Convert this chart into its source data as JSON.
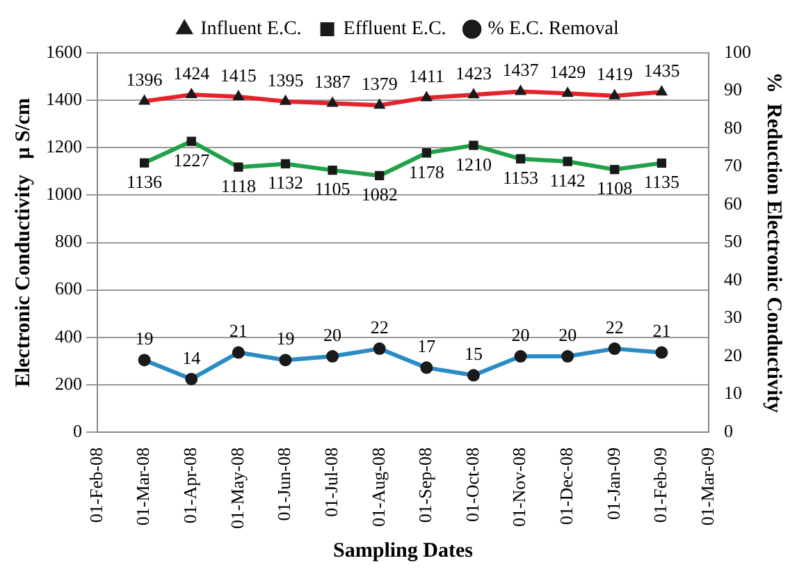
{
  "chart_data": {
    "type": "line",
    "categories": [
      "01-Feb-08",
      "01-Mar-08",
      "01-Apr-08",
      "01-May-08",
      "01-Jun-08",
      "01-Jul-08",
      "01-Aug-08",
      "01-Sep-08",
      "01-Oct-08",
      "01-Nov-08",
      "01-Dec-08",
      "01-Jan-09",
      "01-Feb-09",
      "01-Mar-09"
    ],
    "series": [
      {
        "name": "Influent E.C.",
        "color": "#e3222b",
        "marker": "triangle",
        "values": [
          null,
          1396,
          1424,
          1415,
          1395,
          1387,
          1379,
          1411,
          1423,
          1437,
          1429,
          1419,
          1435,
          null
        ]
      },
      {
        "name": "Effluent E.C.",
        "color": "#21a24a",
        "marker": "square",
        "values": [
          null,
          1136,
          1227,
          1118,
          1132,
          1105,
          1082,
          1178,
          1210,
          1153,
          1142,
          1108,
          1135,
          null
        ]
      },
      {
        "name": "% E.C. Removal",
        "color": "#2b8cc4",
        "marker": "circle",
        "axis": "y2",
        "values": [
          null,
          19,
          14,
          21,
          19,
          20,
          22,
          17,
          15,
          20,
          20,
          22,
          21,
          null
        ]
      }
    ],
    "xlabel": "Sampling Dates",
    "ylabel": "Electronic Conductivity   μ S/cm",
    "y2label": "%  Reduction Electronic Conductivity",
    "ylim": [
      0,
      1600
    ],
    "yticks": [
      0,
      200,
      400,
      600,
      800,
      1000,
      1200,
      1400,
      1600
    ],
    "y2lim": [
      0,
      100
    ],
    "y2ticks": [
      0,
      10,
      20,
      30,
      40,
      50,
      60,
      70,
      80,
      90,
      100
    ],
    "grid": "y",
    "legend": "top",
    "data_labels": true
  }
}
